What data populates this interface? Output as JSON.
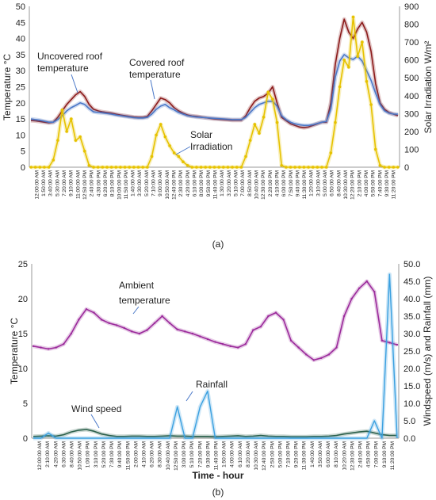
{
  "chart_data": [
    {
      "type": "line",
      "panel_label": "(a)",
      "ylabel": "Temperature °C",
      "y2label": "Solar Irradiation W/m²",
      "ylim": [
        0,
        50
      ],
      "y2lim": [
        0,
        900
      ],
      "y_ticks": [
        "0",
        "5",
        "10",
        "15",
        "20",
        "25",
        "30",
        "35",
        "40",
        "45",
        "50"
      ],
      "y2_ticks": [
        "0",
        "100",
        "200",
        "300",
        "400",
        "500",
        "600",
        "700",
        "800",
        "900"
      ],
      "grid": false,
      "x_tick_labels": [
        "12:00:00 AM",
        "1:50:00 AM",
        "3:40:00 AM",
        "5:30:00 AM",
        "7:20:00 AM",
        "9:10:00 AM",
        "11:00:00 AM",
        "12:50:00 PM",
        "2:40:00 PM",
        "4:30:00 PM",
        "6:20:00 PM",
        "8:10:00 PM",
        "10:00:00 PM",
        "11:50:00 PM",
        "1:40:00 AM",
        "3:30:00 AM",
        "5:20:00 AM",
        "7:10:00 AM",
        "9:00:00 AM",
        "10:50:00 AM",
        "12:40:00 PM",
        "2:30:00 PM",
        "4:20:00 PM",
        "6:10:00 PM",
        "8:00:00 PM",
        "9:50:00 PM",
        "11:40:00 PM",
        "1:30:00 AM",
        "3:20:00 AM",
        "5:10:00 AM",
        "7:00:00 AM",
        "8:50:00 AM",
        "10:40:00 AM",
        "12:30:00 PM",
        "2:20:00 PM",
        "4:10:00 PM",
        "6:00:00 PM",
        "7:50:00 PM",
        "9:40:00 PM",
        "11:30:00 PM",
        "1:20:00 AM",
        "3:10:00 AM",
        "5:00:00 AM",
        "6:50:00 AM",
        "8:40:00 AM",
        "10:30:00 AM",
        "12:20:00 PM",
        "2:10:00 PM",
        "4:00:00 PM",
        "5:50:00 PM",
        "7:40:00 PM",
        "9:30:00 PM",
        "11:20:00 PM"
      ],
      "series": [
        {
          "name": "Uncovered roof temperature",
          "axis": "left",
          "color": "#8b1a1a",
          "values": [
            14.5,
            14.4,
            14.2,
            14.0,
            13.8,
            14.0,
            15.5,
            17.5,
            19.5,
            21.0,
            22.5,
            23.5,
            22.0,
            19.5,
            18.0,
            17.5,
            17.2,
            17.0,
            16.8,
            16.5,
            16.2,
            16.0,
            15.8,
            15.6,
            15.5,
            15.5,
            15.8,
            17.5,
            19.5,
            21.5,
            21.0,
            20.0,
            18.5,
            17.5,
            16.8,
            16.2,
            15.9,
            15.8,
            15.6,
            15.4,
            15.2,
            15.0,
            14.9,
            14.8,
            14.7,
            14.6,
            14.6,
            14.6,
            16.0,
            18.5,
            20.5,
            21.5,
            22.0,
            23.0,
            25.0,
            20.0,
            15.5,
            14.5,
            13.5,
            13.0,
            12.5,
            12.3,
            12.5,
            13.0,
            13.5,
            14.0,
            14.0,
            20.0,
            32.0,
            40.0,
            46.0,
            42.0,
            40.0,
            43.0,
            45.0,
            42.0,
            36.0,
            26.0,
            20.0,
            18.0,
            17.0,
            16.5,
            16.0
          ]
        },
        {
          "name": "Covered roof temperature",
          "axis": "left",
          "color": "#4a78c8",
          "values": [
            15.0,
            14.8,
            14.6,
            14.3,
            14.0,
            14.0,
            14.8,
            16.0,
            17.5,
            18.5,
            19.2,
            20.0,
            19.5,
            18.2,
            17.2,
            17.0,
            16.9,
            16.7,
            16.5,
            16.2,
            16.0,
            15.8,
            15.6,
            15.4,
            15.3,
            15.3,
            15.5,
            16.5,
            18.0,
            19.0,
            19.5,
            18.5,
            17.8,
            17.0,
            16.5,
            16.0,
            15.8,
            15.6,
            15.5,
            15.4,
            15.3,
            15.2,
            15.1,
            15.0,
            14.9,
            14.8,
            14.8,
            14.8,
            15.5,
            17.0,
            18.5,
            19.5,
            20.0,
            20.5,
            20.5,
            19.0,
            16.0,
            14.8,
            14.0,
            13.5,
            13.2,
            13.0,
            13.0,
            13.2,
            13.6,
            14.0,
            14.2,
            18.0,
            28.0,
            33.0,
            35.0,
            34.0,
            33.5,
            34.5,
            33.0,
            30.0,
            27.0,
            23.0,
            19.5,
            17.5,
            16.8,
            16.5,
            16.5
          ]
        },
        {
          "name": "Solar Irradiation",
          "axis": "right",
          "color": "#e6c200",
          "values": [
            0,
            0,
            0,
            0,
            0,
            40,
            150,
            320,
            200,
            270,
            150,
            170,
            90,
            10,
            0,
            0,
            0,
            0,
            0,
            0,
            0,
            0,
            0,
            0,
            0,
            0,
            0,
            60,
            180,
            240,
            170,
            120,
            80,
            60,
            30,
            10,
            0,
            0,
            0,
            0,
            0,
            0,
            0,
            0,
            0,
            0,
            0,
            0,
            60,
            150,
            240,
            190,
            280,
            420,
            380,
            250,
            10,
            0,
            0,
            0,
            0,
            0,
            0,
            0,
            0,
            0,
            0,
            80,
            250,
            450,
            600,
            560,
            840,
            620,
            700,
            480,
            350,
            100,
            10,
            0,
            0,
            0,
            0
          ]
        }
      ],
      "annotations": [
        "Uncovered roof temperature",
        "Covered roof temperature",
        "Solar Irradiation"
      ]
    },
    {
      "type": "line",
      "panel_label": "(b)",
      "xlabel": "Time - hour",
      "ylabel": "Temperature °C",
      "y2label": "Windspeed (m/s) and Rainfall (mm)",
      "ylim": [
        0,
        25
      ],
      "y2lim": [
        0,
        50
      ],
      "y_ticks": [
        "0",
        "5",
        "10",
        "15",
        "20",
        "25"
      ],
      "y2_ticks": [
        "0.0",
        "5.0",
        "10.0",
        "15.0",
        "20.0",
        "25.0",
        "30.0",
        "35.0",
        "40.0",
        "45.0",
        "50.0"
      ],
      "grid": false,
      "x_tick_labels": [
        "12:00:00 AM",
        "2:10:00 AM",
        "4:20:00 AM",
        "6:30:00 AM",
        "8:40:00 AM",
        "10:50:00 AM",
        "1:00:00 PM",
        "3:10:00 PM",
        "5:20:00 PM",
        "7:30:00 PM",
        "9:40:00 PM",
        "11:50:00 PM",
        "2:00:00 AM",
        "4:10:00 AM",
        "6:20:00 AM",
        "8:30:00 AM",
        "10:40:00 AM",
        "12:50:00 PM",
        "3:00:00 PM",
        "5:10:00 PM",
        "7:20:00 PM",
        "9:30:00 PM",
        "11:40:00 PM",
        "1:50:00 AM",
        "4:00:00 AM",
        "6:10:00 AM",
        "8:20:00 AM",
        "10:30:00 AM",
        "12:40:00 PM",
        "2:50:00 PM",
        "5:00:00 PM",
        "7:10:00 PM",
        "9:20:00 PM",
        "11:30:00 PM",
        "1:40:00 AM",
        "3:50:00 AM",
        "6:00:00 AM",
        "8:10:00 AM",
        "10:20:00 AM",
        "12:30:00 PM",
        "2:40:00 PM",
        "4:50:00 PM",
        "7:00:00 PM",
        "9:10:00 PM",
        "11:20:00 PM"
      ],
      "series": [
        {
          "name": "Ambient temperature",
          "axis": "left",
          "color": "#9b2a9b",
          "values": [
            13.2,
            13.0,
            12.8,
            13.0,
            13.5,
            15.0,
            17.0,
            18.5,
            18.0,
            17.0,
            16.5,
            16.2,
            15.8,
            15.3,
            15.0,
            15.5,
            16.5,
            17.5,
            16.5,
            15.6,
            15.3,
            15.0,
            14.6,
            14.2,
            13.8,
            13.5,
            13.2,
            13.0,
            13.5,
            15.5,
            16.0,
            17.5,
            18.0,
            17.0,
            14.0,
            13.0,
            12.0,
            11.2,
            11.5,
            12.0,
            13.0,
            17.5,
            20.0,
            21.5,
            22.5,
            21.0,
            14.0,
            13.7,
            13.4
          ]
        },
        {
          "name": "Wind speed",
          "axis": "right",
          "color": "#2a5f4a",
          "values": [
            0.5,
            0.6,
            0.7,
            0.6,
            1.0,
            1.8,
            2.3,
            2.5,
            2.0,
            1.2,
            0.8,
            0.5,
            0.5,
            0.6,
            0.6,
            0.5,
            0.5,
            0.6,
            0.7,
            0.6,
            0.6,
            0.5,
            0.5,
            0.5,
            0.4,
            0.5,
            0.6,
            0.7,
            0.5,
            0.6,
            0.8,
            0.6,
            0.5,
            0.5,
            0.4,
            0.4,
            0.4,
            0.5,
            0.5,
            0.6,
            0.8,
            1.2,
            1.5,
            1.8,
            2.0,
            1.5,
            1.0,
            0.8,
            0.8
          ]
        },
        {
          "name": "Rainfall",
          "axis": "right",
          "color": "#3aa0e0",
          "values": [
            0,
            0,
            1.5,
            0,
            0,
            0,
            0,
            0,
            0,
            0,
            0,
            0,
            0,
            0,
            0,
            0,
            0,
            0,
            0,
            9.0,
            0,
            0,
            9.0,
            13.5,
            0,
            0,
            0,
            0,
            0,
            0,
            0,
            0,
            0,
            0,
            0,
            0,
            0,
            0,
            0,
            0,
            0,
            0,
            0,
            0,
            0,
            5.0,
            0,
            47.0,
            0
          ]
        }
      ],
      "annotations": [
        "Ambient temperature",
        "Wind speed",
        "Rainfall"
      ]
    }
  ]
}
